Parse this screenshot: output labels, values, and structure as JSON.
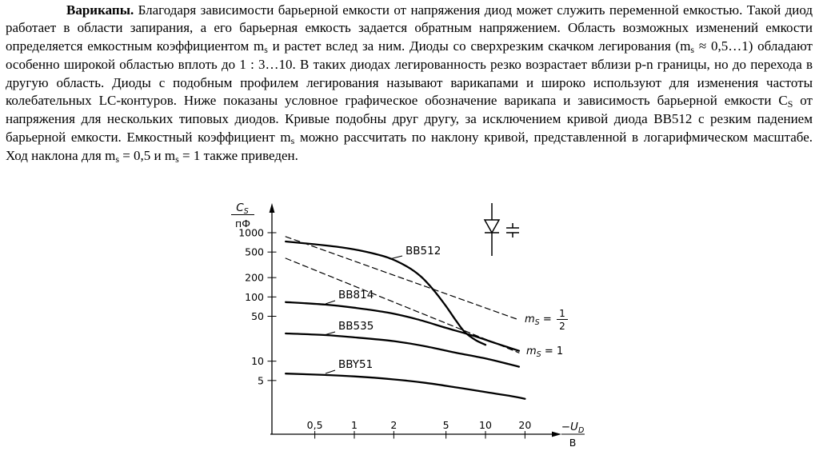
{
  "page": {
    "background": "#ffffff",
    "text_color": "#000000"
  },
  "paragraph": {
    "segments": [
      {
        "t": "Варикапы.",
        "s": "b"
      },
      {
        "t": " Благодаря зависимости барьерной емкости от напряжения диод может служить переменной емкостью. Такой диод работает в области запирания, а его барьерная емкость задается обратным напряжением. Область возможных изменений емкости определяется емкостным коэффициентом m",
        "s": "n"
      },
      {
        "t": "s",
        "s": "sub"
      },
      {
        "t": " и растет вслед за ним. Диоды со сверхрезким скачком легирования (m",
        "s": "n"
      },
      {
        "t": "s",
        "s": "sub"
      },
      {
        "t": " ≈ 0,5…1) обладают особенно широкой областью вплоть до 1 : 3…10. В таких диодах легированность резко возрастает вблизи p-n границы, но до перехода в другую область. Диоды с подобным профилем легирования называют варикапами и широко используют для изменения частоты колебательных LC-контуров. Ниже показаны условное графическое обозначение варикапа и зависимость барьерной емкости C",
        "s": "n"
      },
      {
        "t": "S",
        "s": "sub"
      },
      {
        "t": " от напряжения для нескольких типовых диодов. Кривые подобны друг другу, за исключением кривой диода BB512 с резким падением барьерной емкости. Емкостный коэффициент m",
        "s": "n"
      },
      {
        "t": "s",
        "s": "sub"
      },
      {
        "t": " можно рассчитать по наклону кривой, представленной в логарифмическом масштабе. Ход наклона для m",
        "s": "n"
      },
      {
        "t": "s",
        "s": "sub"
      },
      {
        "t": " = 0,5 и m",
        "s": "n"
      },
      {
        "t": "s",
        "s": "sub"
      },
      {
        "t": " = 1 также приведен.",
        "s": "n"
      }
    ]
  },
  "chart_data": {
    "type": "line",
    "log_x": true,
    "log_y": true,
    "x_range": [
      0.3,
      30
    ],
    "y_range": [
      2,
      1200
    ],
    "grid": false,
    "line_color": "#000000",
    "y_axis_label": {
      "numerator": "C",
      "numerator_sub": "S",
      "denominator": "пФ"
    },
    "x_axis_label": {
      "numerator": "−U",
      "numerator_sub": "D",
      "denominator": "В"
    },
    "y_ticks": [
      {
        "v": 1000,
        "label": "1000"
      },
      {
        "v": 500,
        "label": "500"
      },
      {
        "v": 200,
        "label": "200"
      },
      {
        "v": 100,
        "label": "100"
      },
      {
        "v": 50,
        "label": "50"
      },
      {
        "v": 10,
        "label": "10"
      },
      {
        "v": 5,
        "label": "5"
      }
    ],
    "x_ticks": [
      {
        "v": 0.5,
        "label": "0,5"
      },
      {
        "v": 1,
        "label": "1"
      },
      {
        "v": 2,
        "label": "2"
      },
      {
        "v": 5,
        "label": "5"
      },
      {
        "v": 10,
        "label": "10"
      },
      {
        "v": 20,
        "label": "20"
      }
    ],
    "series": [
      {
        "id": "bb512",
        "name": "BB512",
        "style": "solid",
        "points": [
          [
            0.3,
            730
          ],
          [
            0.5,
            660
          ],
          [
            0.8,
            590
          ],
          [
            1.2,
            510
          ],
          [
            1.8,
            410
          ],
          [
            2.5,
            300
          ],
          [
            3.2,
            210
          ],
          [
            4,
            130
          ],
          [
            5,
            72
          ],
          [
            6,
            42
          ],
          [
            7,
            28
          ],
          [
            8.5,
            21
          ],
          [
            10,
            18
          ]
        ]
      },
      {
        "id": "bb814",
        "name": "BB814",
        "style": "solid",
        "points": [
          [
            0.3,
            83
          ],
          [
            0.6,
            76
          ],
          [
            1,
            68
          ],
          [
            1.8,
            57
          ],
          [
            3,
            45
          ],
          [
            5,
            33
          ],
          [
            8,
            25
          ],
          [
            12,
            19
          ],
          [
            18,
            14.5
          ]
        ]
      },
      {
        "id": "bb535",
        "name": "BB535",
        "style": "solid",
        "points": [
          [
            0.3,
            27
          ],
          [
            0.6,
            25.5
          ],
          [
            1,
            23.5
          ],
          [
            2,
            20.5
          ],
          [
            3.5,
            17
          ],
          [
            6,
            13.5
          ],
          [
            10,
            11
          ],
          [
            15,
            9
          ],
          [
            18,
            8.2
          ]
        ]
      },
      {
        "id": "bby51",
        "name": "BBY51",
        "style": "solid",
        "points": [
          [
            0.3,
            6.4
          ],
          [
            0.6,
            6.1
          ],
          [
            1,
            5.8
          ],
          [
            2,
            5.2
          ],
          [
            3.5,
            4.6
          ],
          [
            6,
            3.9
          ],
          [
            10,
            3.3
          ],
          [
            15,
            2.9
          ],
          [
            20,
            2.6
          ]
        ]
      },
      {
        "id": "ms-half",
        "name": "mS = 1/2",
        "style": "dashed",
        "points": [
          [
            0.3,
            870
          ],
          [
            18,
            44
          ]
        ]
      },
      {
        "id": "ms-one",
        "name": "mS = 1",
        "style": "dashed",
        "points": [
          [
            0.3,
            400
          ],
          [
            18,
            13.5
          ]
        ]
      }
    ],
    "slope_labels": [
      {
        "pre": "m",
        "sub": "S",
        "mid": " = ",
        "num": "1",
        "den": "2"
      },
      {
        "pre": "m",
        "sub": "S",
        "mid": " = 1"
      }
    ],
    "symbol": "varicap-diode"
  }
}
